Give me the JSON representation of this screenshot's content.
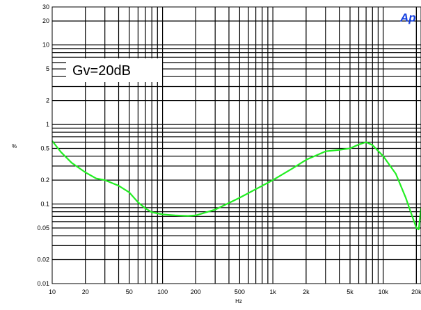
{
  "chart_data": {
    "type": "line",
    "xlabel": "Hz",
    "ylabel": "%",
    "x_scale": "log",
    "y_scale": "log",
    "xlim": [
      10,
      22000
    ],
    "ylim": [
      0.01,
      30
    ],
    "grid": true,
    "x_ticks": [
      {
        "value": 10,
        "label": "10"
      },
      {
        "value": 20,
        "label": "20"
      },
      {
        "value": 50,
        "label": "50"
      },
      {
        "value": 100,
        "label": "100"
      },
      {
        "value": 200,
        "label": "200"
      },
      {
        "value": 500,
        "label": "500"
      },
      {
        "value": 1000,
        "label": "1k"
      },
      {
        "value": 2000,
        "label": "2k"
      },
      {
        "value": 5000,
        "label": "5k"
      },
      {
        "value": 10000,
        "label": "10k"
      },
      {
        "value": 20000,
        "label": "20k"
      }
    ],
    "y_ticks": [
      {
        "value": 0.01,
        "label": "0.01"
      },
      {
        "value": 0.02,
        "label": "0.02"
      },
      {
        "value": 0.05,
        "label": "0.05"
      },
      {
        "value": 0.1,
        "label": "0.1"
      },
      {
        "value": 0.2,
        "label": "0.2"
      },
      {
        "value": 0.5,
        "label": "0.5"
      },
      {
        "value": 1,
        "label": "1"
      },
      {
        "value": 2,
        "label": "2"
      },
      {
        "value": 5,
        "label": "5"
      },
      {
        "value": 10,
        "label": "10"
      },
      {
        "value": 20,
        "label": "20"
      },
      {
        "value": 30,
        "label": "30"
      }
    ],
    "annotation": "Gv=20dB",
    "logo": "Ap",
    "series": [
      {
        "color": "#22ee22",
        "x": [
          10,
          12,
          15,
          20,
          25,
          30,
          40,
          50,
          60,
          70,
          80,
          100,
          130,
          170,
          200,
          300,
          500,
          1000,
          1500,
          2000,
          3000,
          4000,
          5000,
          6000,
          7000,
          8000,
          10000,
          13000,
          16000,
          18000,
          20000,
          21000,
          22000
        ],
        "y": [
          0.62,
          0.45,
          0.33,
          0.25,
          0.21,
          0.2,
          0.17,
          0.14,
          0.105,
          0.088,
          0.079,
          0.074,
          0.072,
          0.071,
          0.072,
          0.085,
          0.12,
          0.2,
          0.28,
          0.36,
          0.46,
          0.48,
          0.5,
          0.56,
          0.6,
          0.55,
          0.4,
          0.24,
          0.12,
          0.075,
          0.05,
          0.048,
          0.09
        ]
      }
    ]
  }
}
